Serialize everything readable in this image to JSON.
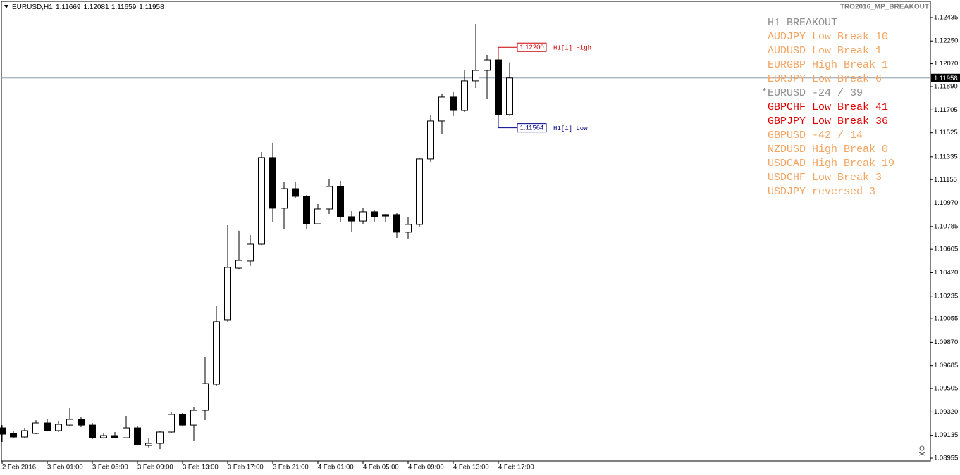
{
  "chart_data": {
    "type": "candlestick",
    "title": "EURUSD,H1",
    "indicator": "TRO2016_MP_BREAKOUT",
    "categories": [
      "2 Feb 2016",
      null,
      null,
      null,
      "3 Feb 01:00",
      null,
      null,
      null,
      "3 Feb 05:00",
      null,
      null,
      null,
      "3 Feb 09:00",
      null,
      null,
      null,
      "3 Feb 13:00",
      null,
      null,
      null,
      "3 Feb 17:00",
      null,
      null,
      null,
      "3 Feb 21:00",
      null,
      null,
      null,
      "4 Feb 01:00",
      null,
      null,
      null,
      "4 Feb 05:00",
      null,
      null,
      null,
      "4 Feb 09:00",
      null,
      null,
      null,
      "4 Feb 13:00",
      null,
      null,
      null,
      "4 Feb 17:00",
      null
    ],
    "open": [
      1.09194,
      1.0915,
      1.09122,
      1.0915,
      1.09233,
      1.09172,
      1.09216,
      1.09261,
      1.09216,
      1.09116,
      1.09133,
      1.09116,
      1.09194,
      1.09055,
      1.09072,
      1.09161,
      1.093,
      1.09216,
      1.09333,
      1.09539,
      1.10045,
      1.10456,
      1.10512,
      1.10645,
      1.11329,
      1.10929,
      1.11084,
      1.11023,
      1.10806,
      1.10923,
      1.11101,
      1.10862,
      1.10828,
      1.10901,
      1.10879,
      1.10879,
      1.1074,
      1.10801,
      1.11318,
      1.11618,
      1.11807,
      1.11701,
      1.11935,
      1.12018,
      1.12101,
      1.11669
    ],
    "high": [
      1.09216,
      1.09166,
      1.09194,
      1.09255,
      1.09261,
      1.0925,
      1.0935,
      1.09278,
      1.09233,
      1.0915,
      1.09161,
      1.09289,
      1.09211,
      1.09116,
      1.09172,
      1.09322,
      1.09311,
      1.09361,
      1.0975,
      1.10156,
      1.10795,
      1.10751,
      1.10717,
      1.11373,
      1.11446,
      1.11134,
      1.1114,
      1.11034,
      1.10962,
      1.11156,
      1.11145,
      1.10906,
      1.10929,
      1.10917,
      1.10884,
      1.1089,
      1.10856,
      1.11329,
      1.11668,
      1.11835,
      1.11846,
      1.12018,
      1.12385,
      1.1214,
      1.122,
      1.12081
    ],
    "low": [
      1.09083,
      1.09111,
      1.09116,
      1.09144,
      1.09166,
      1.09161,
      1.09205,
      1.092,
      1.09105,
      1.09111,
      1.09111,
      1.09111,
      1.09055,
      1.09039,
      1.09027,
      1.09155,
      1.09205,
      1.09094,
      1.09255,
      1.09528,
      1.10034,
      1.1045,
      1.10473,
      1.10639,
      1.10823,
      1.10762,
      1.11006,
      1.10762,
      1.10801,
      1.10884,
      1.10823,
      1.1074,
      1.10806,
      1.10823,
      1.10817,
      1.10695,
      1.1069,
      1.10784,
      1.11295,
      1.11512,
      1.11657,
      1.1169,
      1.11879,
      1.1179,
      1.11564,
      1.11659
    ],
    "close": [
      1.09144,
      1.09122,
      1.09172,
      1.09233,
      1.09172,
      1.09222,
      1.09261,
      1.09216,
      1.09116,
      1.09133,
      1.09116,
      1.09194,
      1.09061,
      1.09072,
      1.09161,
      1.093,
      1.09216,
      1.09333,
      1.09544,
      1.10034,
      1.10462,
      1.10517,
      1.10645,
      1.11329,
      1.10929,
      1.11084,
      1.11023,
      1.10806,
      1.10923,
      1.11101,
      1.10862,
      1.10828,
      1.10901,
      1.10862,
      1.10867,
      1.1074,
      1.10801,
      1.11318,
      1.11618,
      1.11807,
      1.11701,
      1.11935,
      1.12018,
      1.12101,
      1.11669,
      1.11958
    ],
    "up_color": "#ffffff",
    "down_color": "#000000",
    "price_line_color": "#8c9bb0",
    "ylim": [
      1.08933,
      1.12557
    ],
    "yticks": [
      1.12435,
      {
        "value": 1.1225,
        "label": "1.12250"
      },
      {
        "value": 1.1207,
        "label": "1.12070"
      },
      {
        "value": 1.1189,
        "label": "1.11890"
      },
      1.11705,
      1.11525,
      1.11335,
      1.11155,
      {
        "value": 1.1097,
        "label": "1.10970"
      },
      1.10785,
      1.10605,
      {
        "value": 1.1042,
        "label": "1.10420"
      },
      1.10235,
      1.10055,
      {
        "value": 1.0987,
        "label": "1.09870"
      },
      1.09685,
      1.09505,
      {
        "value": 1.0932,
        "label": "1.09320"
      },
      1.09135,
      1.08955
    ],
    "levels": [
      {
        "value": 1.122,
        "label": "1.12200",
        "name": "H1[1] High",
        "color": "#cc0000"
      },
      {
        "value": 1.11564,
        "label": "1.11564",
        "name": "H1[1] Low",
        "color": "#00008b"
      }
    ],
    "panel": [
      {
        "text": "H1 BREAKOUT",
        "color": "#8c8c8c"
      },
      {
        "text": "AUDJPY Low Break 10",
        "color": "#f4a460"
      },
      {
        "text": "AUDUSD Low Break 1",
        "color": "#f4a460"
      },
      {
        "text": "EURGBP High Break 1",
        "color": "#f4a460"
      },
      {
        "text": "EURJPY Low Break 6",
        "color": "#f4a460"
      },
      {
        "text": "*EURUSD -24 / 39",
        "color": "#8c8c8c"
      },
      {
        "text": "GBPCHF Low Break 41",
        "color": "#e00000"
      },
      {
        "text": "GBPJPY Low Break 36",
        "color": "#e00000"
      },
      {
        "text": "GBPUSD -42 / 14",
        "color": "#f4a460"
      },
      {
        "text": "NZDUSD High Break 0",
        "color": "#f4a460"
      },
      {
        "text": "USDCAD High Break 19",
        "color": "#f4a460"
      },
      {
        "text": "USDCHF Low Break 3",
        "color": "#f4a460"
      },
      {
        "text": "USDJPY reversed 3",
        "color": "#f4a460"
      }
    ]
  }
}
